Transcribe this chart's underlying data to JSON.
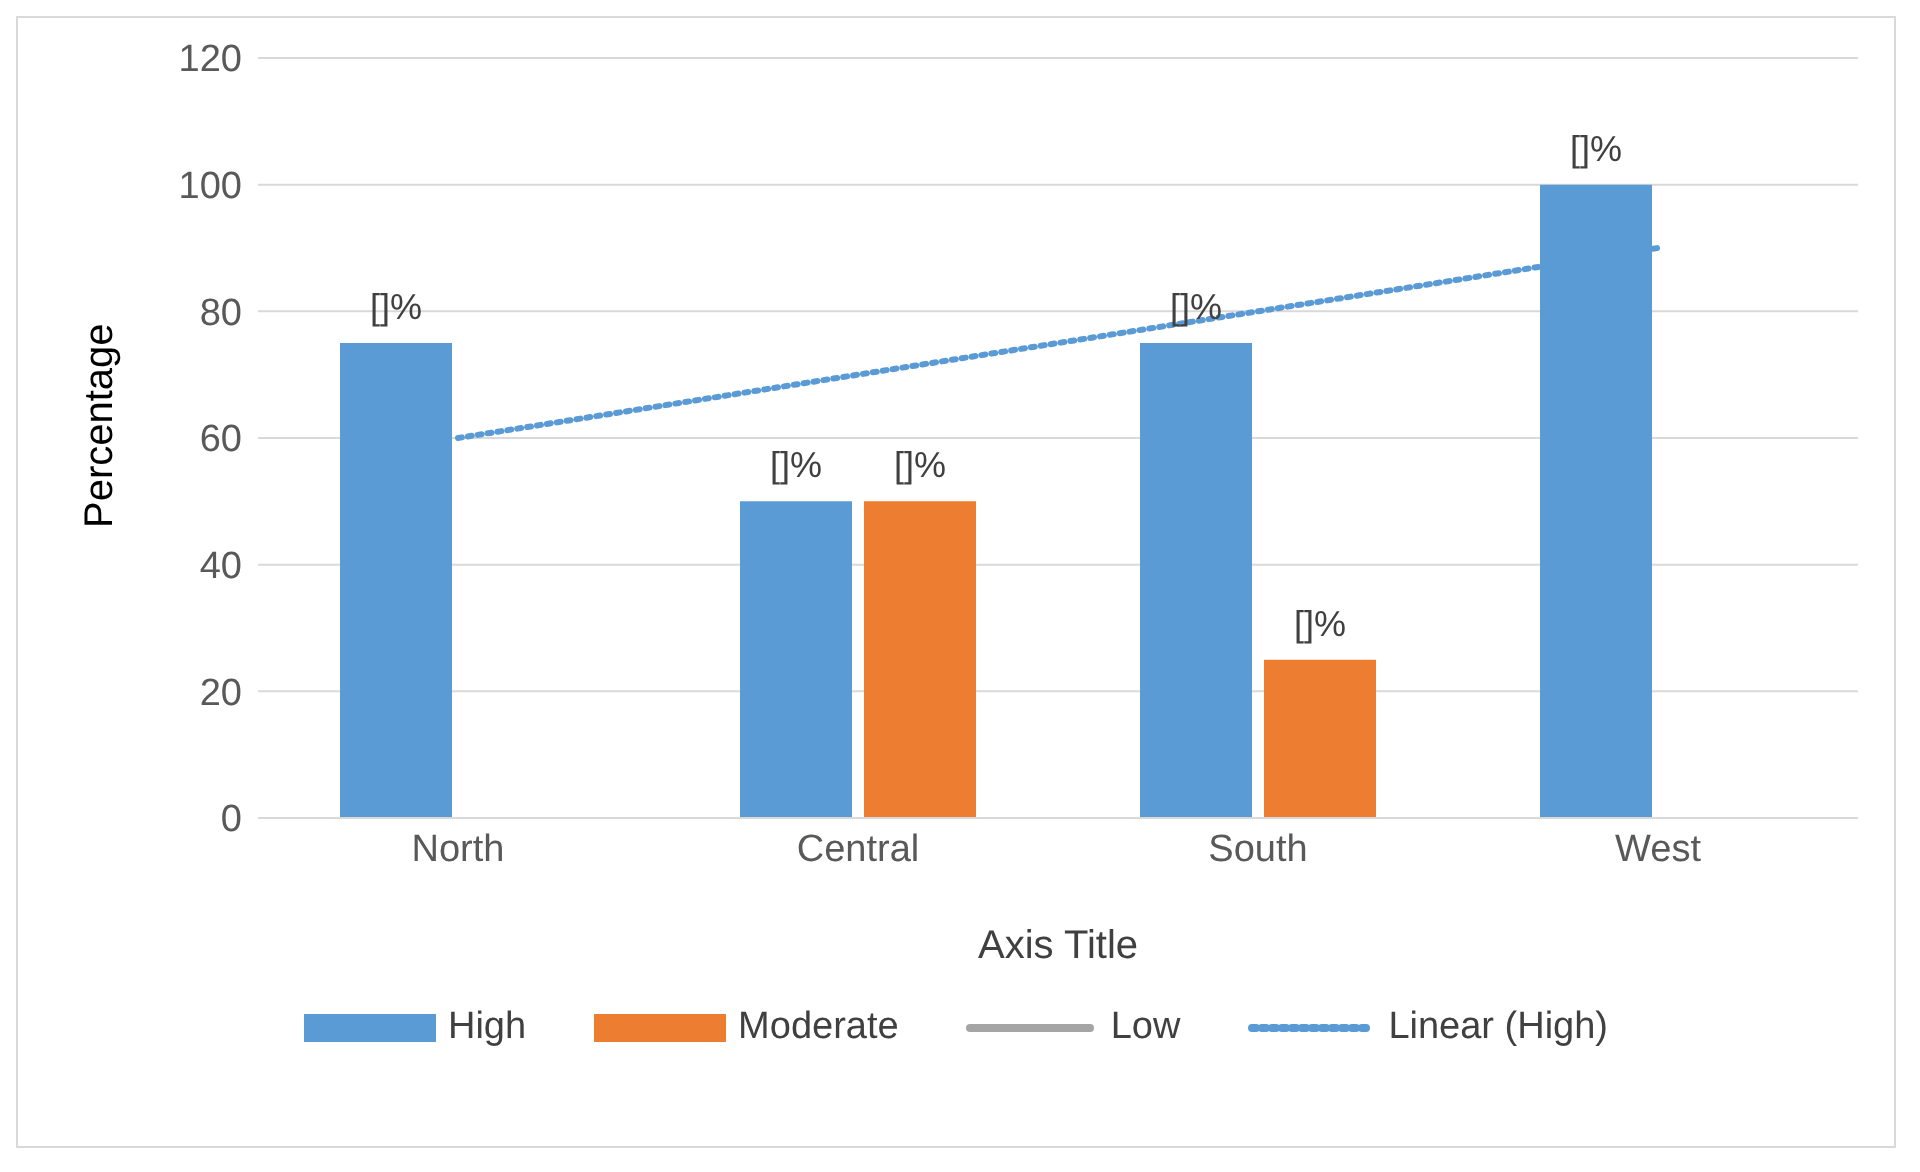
{
  "chart_data": {
    "type": "bar",
    "categories": [
      "North",
      "Central",
      "South",
      "West"
    ],
    "series": [
      {
        "name": "High",
        "color": "#5b9bd5",
        "values": [
          75,
          50,
          75,
          100
        ],
        "value_labels": [
          "[]%",
          "[]%",
          "[]%",
          "[]%"
        ]
      },
      {
        "name": "Moderate",
        "color": "#ed7d31",
        "values": [
          null,
          50,
          25,
          null
        ],
        "value_labels": [
          null,
          "[]%",
          "[]%",
          null
        ]
      },
      {
        "name": "Low",
        "type": "line",
        "color": "#a5a5a5",
        "values": [
          null,
          null,
          null,
          null
        ]
      },
      {
        "name": "Linear (High)",
        "type": "line",
        "color": "#5b9bd5",
        "line_style": "dotted",
        "values": [
          60,
          70,
          80,
          90
        ]
      }
    ],
    "xlabel": "Axis Title",
    "ylabel": "Percentage",
    "ylim": [
      0,
      120
    ],
    "yticks": [
      0,
      20,
      40,
      60,
      80,
      100,
      120
    ],
    "grid": "y",
    "legend": "bottom"
  }
}
